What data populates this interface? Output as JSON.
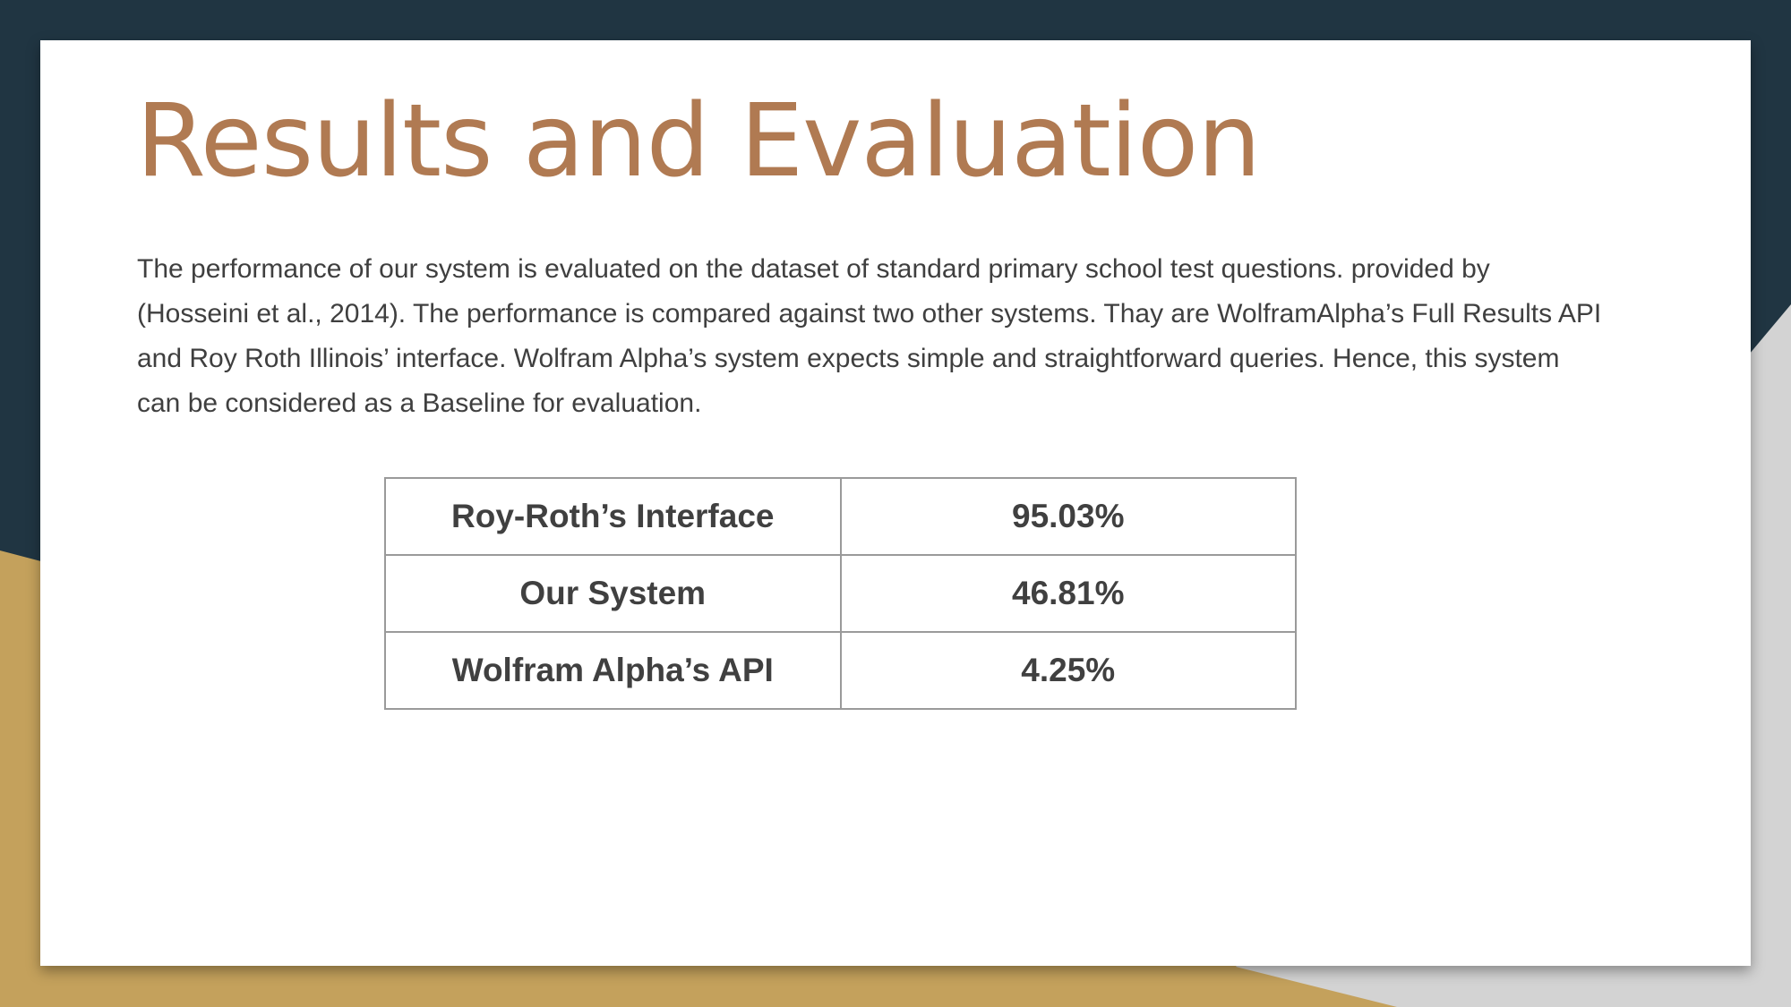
{
  "slide": {
    "title": "Results and Evaluation",
    "body": "The performance of our system is evaluated on the dataset of standard primary school test questions. provided by (Hosseini et al., 2014). The performance is compared against two other systems. Thay are WolframAlpha’s Full Results API and Roy Roth Illinois’ interface. Wolfram Alpha’s system expects simple and straightforward queries. Hence, this system can be considered as a Baseline for evaluation."
  },
  "table": {
    "rows": [
      {
        "system": "Roy-Roth’s Interface",
        "score": "95.03%"
      },
      {
        "system": "Our System",
        "score": "46.81%"
      },
      {
        "system": "Wolfram Alpha’s API",
        "score": "4.25%"
      }
    ]
  },
  "colors": {
    "navy": "#203542",
    "gold": "#c4a15c",
    "gray": "#cfcfcf",
    "title": "#b07a52",
    "text": "#3f3f3f"
  }
}
